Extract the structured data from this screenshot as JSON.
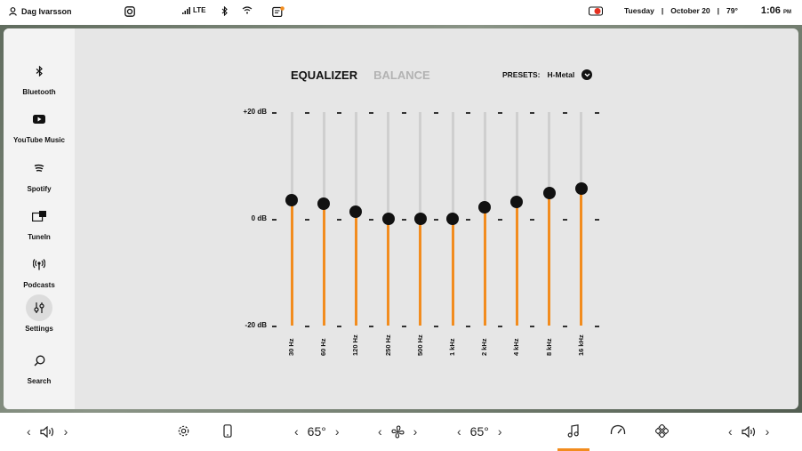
{
  "status": {
    "user": "Dag Ivarsson",
    "signal": "LTE",
    "date": "Tuesday",
    "date2": "October 20",
    "temp": "79°",
    "time": "1:06",
    "ampm": "PM"
  },
  "sidebar": {
    "items": [
      {
        "label": "Bluetooth",
        "icon": "bluetooth-icon"
      },
      {
        "label": "YouTube Music",
        "icon": "youtube-icon"
      },
      {
        "label": "Spotify",
        "icon": "spotify-icon"
      },
      {
        "label": "TuneIn",
        "icon": "tunein-icon"
      },
      {
        "label": "Podcasts",
        "icon": "podcast-icon"
      },
      {
        "label": "Settings",
        "icon": "sliders-icon"
      },
      {
        "label": "Search",
        "icon": "search-icon"
      }
    ]
  },
  "tabs": {
    "equalizer": "EQUALIZER",
    "balance": "BALANCE"
  },
  "presets": {
    "label": "PRESETS:",
    "value": "H-Metal"
  },
  "eq": {
    "db_labels": {
      "top": "+20 dB",
      "mid": "0 dB",
      "bottom": "-20 dB"
    },
    "range_db": [
      -20,
      20
    ],
    "bands": [
      {
        "freq": "30 Hz",
        "db": 3.5
      },
      {
        "freq": "60 Hz",
        "db": 2.8
      },
      {
        "freq": "120 Hz",
        "db": 1.4
      },
      {
        "freq": "250 Hz",
        "db": 0
      },
      {
        "freq": "500 Hz",
        "db": 0
      },
      {
        "freq": "1 kHz",
        "db": 0
      },
      {
        "freq": "2 kHz",
        "db": 2.2
      },
      {
        "freq": "4 kHz",
        "db": 3.2
      },
      {
        "freq": "8 kHz",
        "db": 4.8
      },
      {
        "freq": "16 kHz",
        "db": 5.7
      }
    ],
    "accent": "#f28c1e"
  },
  "bottom": {
    "left_temp": "65°",
    "right_temp": "65°"
  }
}
